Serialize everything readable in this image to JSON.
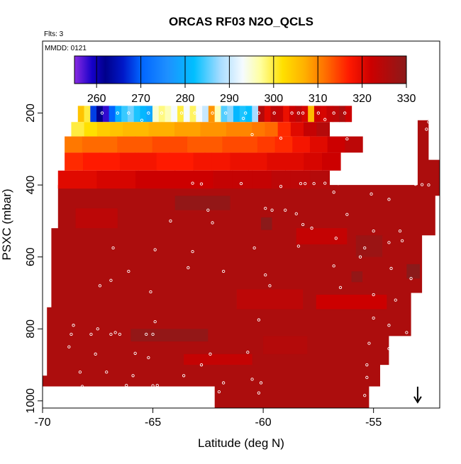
{
  "flights_note": "Flts: 3",
  "mmdd_note": "MMDD: 0121",
  "chart_data": {
    "type": "heatmap",
    "title": "ORCAS RF03 N2O_QCLS",
    "xlabel": "Latitude (deg N)",
    "ylabel": "PSXC (mbar)",
    "xlim": [
      -70,
      -52
    ],
    "ylim": [
      1020,
      0
    ],
    "x_ticks": [
      -70,
      -65,
      -60,
      -55
    ],
    "y_ticks": [
      200,
      400,
      600,
      800,
      1000
    ],
    "colorbar": {
      "min": 255,
      "max": 330,
      "ticks": [
        260,
        270,
        280,
        290,
        300,
        310,
        320,
        330
      ],
      "stops": [
        {
          "v": 255,
          "color": "#8a2be2"
        },
        {
          "v": 259,
          "color": "#1500c8"
        },
        {
          "v": 262,
          "color": "#00008b"
        },
        {
          "v": 266,
          "color": "#0018c8"
        },
        {
          "v": 270,
          "color": "#0064ff"
        },
        {
          "v": 276,
          "color": "#1e90ff"
        },
        {
          "v": 282,
          "color": "#00bfff"
        },
        {
          "v": 288,
          "color": "#a8dcff"
        },
        {
          "v": 293,
          "color": "#f5fbff"
        },
        {
          "v": 297,
          "color": "#ffffa0"
        },
        {
          "v": 302,
          "color": "#ffe000"
        },
        {
          "v": 307,
          "color": "#ffb000"
        },
        {
          "v": 312,
          "color": "#ff6a00"
        },
        {
          "v": 317,
          "color": "#ff1a00"
        },
        {
          "v": 322,
          "color": "#cc0000"
        },
        {
          "v": 330,
          "color": "#8b1a1a"
        }
      ]
    },
    "bands": [
      {
        "p0": 180,
        "p1": 225,
        "x0": -68.4,
        "x1": -56.0,
        "values": [
          305,
          300,
          268,
          262,
          258,
          270,
          280,
          284,
          286,
          283,
          281,
          279,
          295,
          298,
          296,
          293,
          300,
          293,
          299,
          293,
          290,
          309,
          296,
          285,
          287,
          281,
          283,
          282,
          288,
          325,
          320,
          324,
          323,
          319,
          322,
          324,
          321,
          306,
          322,
          321,
          323,
          324,
          326,
          322
        ]
      },
      {
        "p0": 225,
        "p1": 265,
        "x0": -68.7,
        "x1": -57.0,
        "values": [
          300,
          302,
          304,
          305,
          306,
          306,
          307,
          307,
          308,
          308,
          309,
          309,
          310,
          310,
          311,
          312,
          316,
          320,
          323,
          325
        ]
      },
      {
        "p0": 265,
        "p1": 310,
        "x0": -69.0,
        "x1": -55.5,
        "values": [
          311,
          312,
          312,
          313,
          313,
          314,
          314,
          313,
          313,
          314,
          314,
          315,
          316,
          318,
          320,
          322,
          324
        ]
      },
      {
        "p0": 310,
        "p1": 360,
        "x0": -69.0,
        "x1": -56.5,
        "values": [
          316,
          317,
          317,
          318,
          318,
          317,
          317,
          318,
          318,
          319,
          319,
          320,
          320,
          321,
          322
        ]
      },
      {
        "p0": 360,
        "p1": 410,
        "x0": -69.3,
        "x1": -57.0,
        "values": [
          320,
          320,
          321,
          321,
          322,
          322,
          322,
          322,
          323,
          323,
          323,
          324,
          324,
          325
        ]
      }
    ],
    "background_value": 326,
    "points": [
      [
        -67.3,
        200
      ],
      [
        -66.6,
        200
      ],
      [
        -66.1,
        200
      ],
      [
        -65.2,
        200
      ],
      [
        -64.6,
        200
      ],
      [
        -63.7,
        200
      ],
      [
        -63.1,
        200
      ],
      [
        -62.3,
        200
      ],
      [
        -61.7,
        200
      ],
      [
        -60.8,
        200
      ],
      [
        -60.2,
        200
      ],
      [
        -59.5,
        200
      ],
      [
        -58.7,
        200
      ],
      [
        -58.4,
        200
      ],
      [
        -58.2,
        200
      ],
      [
        -57.5,
        200
      ],
      [
        -56.8,
        200
      ],
      [
        -56.3,
        200
      ],
      [
        -55.4,
        200
      ],
      [
        -55.0,
        200
      ],
      [
        -54.6,
        200
      ],
      [
        -54.2,
        200
      ],
      [
        -53.8,
        200
      ],
      [
        -53.3,
        200
      ],
      [
        -53.0,
        200
      ],
      [
        -65.5,
        220
      ],
      [
        -60.9,
        215
      ],
      [
        -57.2,
        218
      ],
      [
        -55.6,
        226
      ],
      [
        -54.8,
        215
      ],
      [
        -55.3,
        240
      ],
      [
        -52.5,
        225
      ],
      [
        -52.6,
        245
      ],
      [
        -60.5,
        260
      ],
      [
        -59.2,
        270
      ],
      [
        -56.2,
        272
      ],
      [
        -55.2,
        268
      ],
      [
        -63.2,
        395
      ],
      [
        -62.8,
        397
      ],
      [
        -61.0,
        396
      ],
      [
        -59.2,
        404
      ],
      [
        -58.3,
        396
      ],
      [
        -58.1,
        396
      ],
      [
        -57.7,
        396
      ],
      [
        -57.2,
        395
      ],
      [
        -56.6,
        396
      ],
      [
        -56.0,
        395
      ],
      [
        -55.5,
        395
      ],
      [
        -55.1,
        395
      ],
      [
        -54.3,
        395
      ],
      [
        -53.5,
        395
      ],
      [
        -53.1,
        398
      ],
      [
        -52.8,
        399
      ],
      [
        -52.5,
        400
      ],
      [
        -56.8,
        420
      ],
      [
        -55.1,
        425
      ],
      [
        -54.3,
        440
      ],
      [
        -62.5,
        470
      ],
      [
        -59.0,
        470
      ],
      [
        -58.5,
        480
      ],
      [
        -66.8,
        575
      ],
      [
        -64.2,
        500
      ],
      [
        -62.3,
        505
      ],
      [
        -59.9,
        465
      ],
      [
        -59.6,
        470
      ],
      [
        -58.2,
        510
      ],
      [
        -57.8,
        520
      ],
      [
        -56.2,
        482
      ],
      [
        -55.0,
        528
      ],
      [
        -53.8,
        528
      ],
      [
        -64.9,
        580
      ],
      [
        -63.2,
        585
      ],
      [
        -60.4,
        575
      ],
      [
        -58.4,
        570
      ],
      [
        -56.7,
        548
      ],
      [
        -55.4,
        575
      ],
      [
        -54.3,
        560
      ],
      [
        -53.7,
        555
      ],
      [
        -52.6,
        555
      ],
      [
        -66.1,
        640
      ],
      [
        -63.4,
        630
      ],
      [
        -61.8,
        640
      ],
      [
        -59.9,
        650
      ],
      [
        -56.8,
        625
      ],
      [
        -55.6,
        600
      ],
      [
        -54.2,
        632
      ],
      [
        -53.3,
        660
      ],
      [
        -52.5,
        675
      ],
      [
        -66.9,
        665
      ],
      [
        -67.4,
        680
      ],
      [
        -65.1,
        697
      ],
      [
        -59.7,
        680
      ],
      [
        -56.5,
        685
      ],
      [
        -55.0,
        705
      ],
      [
        -54.0,
        720
      ],
      [
        -52.5,
        730
      ],
      [
        -68.6,
        790
      ],
      [
        -67.5,
        800
      ],
      [
        -66.7,
        810
      ],
      [
        -64.9,
        780
      ],
      [
        -60.2,
        775
      ],
      [
        -55.0,
        770
      ],
      [
        -54.3,
        790
      ],
      [
        -53.5,
        810
      ],
      [
        -68.7,
        815
      ],
      [
        -67.8,
        815
      ],
      [
        -66.9,
        815
      ],
      [
        -66.5,
        815
      ],
      [
        -65.3,
        815
      ],
      [
        -65.0,
        815
      ],
      [
        -62.4,
        870
      ],
      [
        -60.7,
        865
      ],
      [
        -55.2,
        840
      ],
      [
        -54.3,
        855
      ],
      [
        -68.8,
        850
      ],
      [
        -67.6,
        870
      ],
      [
        -65.8,
        868
      ],
      [
        -65.2,
        880
      ],
      [
        -62.8,
        900
      ],
      [
        -60.5,
        940
      ],
      [
        -55.3,
        900
      ],
      [
        -54.5,
        905
      ],
      [
        -68.3,
        920
      ],
      [
        -67.1,
        920
      ],
      [
        -65.9,
        930
      ],
      [
        -63.6,
        930
      ],
      [
        -61.8,
        950
      ],
      [
        -60.1,
        950
      ],
      [
        -55.3,
        935
      ],
      [
        -68.9,
        965
      ],
      [
        -68.2,
        960
      ],
      [
        -66.2,
        957
      ],
      [
        -65.0,
        958
      ],
      [
        -64.8,
        957
      ],
      [
        -62.0,
        975
      ],
      [
        -60.2,
        978
      ],
      [
        -55.4,
        985
      ]
    ],
    "marker": {
      "x": -53.0,
      "p": 1000,
      "label": "down-arrow"
    }
  }
}
